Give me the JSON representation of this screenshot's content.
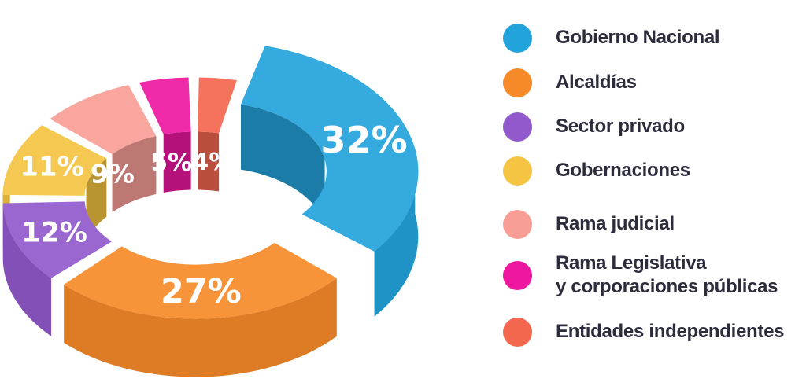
{
  "chart_data": {
    "type": "pie",
    "variant": "3d-donut-exploded",
    "title": "",
    "legend_position": "right",
    "label_text_color": "#FFFFFF",
    "legend_text_color": "#2D2C3C",
    "background_color": "#FFFFFF",
    "items": [
      {
        "label": "Gobierno Nacional",
        "value": 32,
        "value_label": "32%",
        "color": "#22A3DC"
      },
      {
        "label": "Alcaldías",
        "value": 27,
        "value_label": "27%",
        "color": "#F68A28"
      },
      {
        "label": "Sector privado",
        "value": 12,
        "value_label": "12%",
        "color": "#9159CC"
      },
      {
        "label": "Gobernaciones",
        "value": 11,
        "value_label": "11%",
        "color": "#F4C442"
      },
      {
        "label": "Rama judicial",
        "value": 9,
        "value_label": "9%",
        "color": "#F99E97"
      },
      {
        "label": "Rama Legislativa",
        "label_line2": "y corporaciones públicas",
        "value": 5,
        "value_label": "5%",
        "color": "#EE17A0"
      },
      {
        "label": "Entidades independientes",
        "value": 4,
        "value_label": "4%",
        "color": "#F4674F"
      }
    ]
  }
}
